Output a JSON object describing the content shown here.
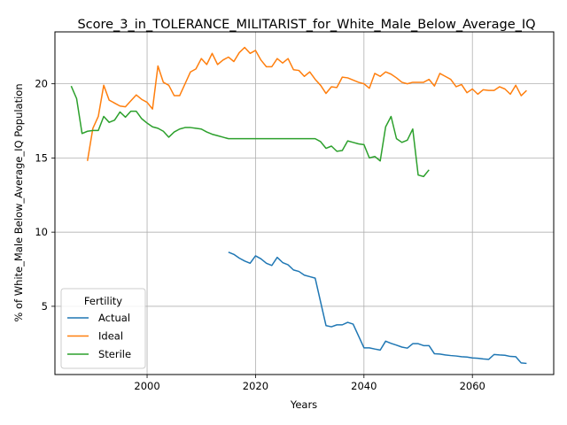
{
  "chart_data": {
    "type": "line",
    "title": "Score_3_in_TOLERANCE_MILITARIST_for_White_Male_Below_Average_IQ",
    "xlabel": "Years",
    "ylabel": "% of White_Male Below_Average_IQ Population",
    "xlim": [
      1983,
      2075
    ],
    "ylim": [
      0.4,
      23.5
    ],
    "xticks": [
      2000,
      2020,
      2040,
      2060
    ],
    "yticks": [
      5,
      10,
      15,
      20
    ],
    "grid": true,
    "legend": {
      "title": "Fertility",
      "placement": "lower-left"
    },
    "series": [
      {
        "name": "Actual",
        "color": "#1f77b4",
        "x": [
          2015,
          2016,
          2017,
          2018,
          2019,
          2020,
          2021,
          2022,
          2023,
          2024,
          2025,
          2026,
          2027,
          2028,
          2029,
          2030,
          2031,
          2032,
          2033,
          2034,
          2035,
          2036,
          2037,
          2038,
          2039,
          2040,
          2041,
          2042,
          2043,
          2044,
          2045,
          2046,
          2047,
          2048,
          2049,
          2050,
          2051,
          2052,
          2053,
          2054,
          2055,
          2056,
          2057,
          2058,
          2059,
          2060,
          2061,
          2062,
          2063,
          2064,
          2065,
          2066,
          2067,
          2068,
          2069,
          2070
        ],
        "y": [
          8.65,
          8.5,
          8.25,
          8.05,
          7.9,
          8.4,
          8.2,
          7.9,
          7.75,
          8.3,
          7.95,
          7.8,
          7.45,
          7.35,
          7.1,
          7.0,
          6.9,
          5.3,
          3.7,
          3.62,
          3.75,
          3.75,
          3.92,
          3.8,
          3.0,
          2.2,
          2.2,
          2.12,
          2.05,
          2.65,
          2.5,
          2.38,
          2.25,
          2.18,
          2.48,
          2.48,
          2.35,
          2.35,
          1.8,
          1.78,
          1.72,
          1.68,
          1.65,
          1.6,
          1.58,
          1.52,
          1.5,
          1.45,
          1.42,
          1.75,
          1.72,
          1.7,
          1.62,
          1.6,
          1.18,
          1.15
        ]
      },
      {
        "name": "Ideal",
        "color": "#ff7f0e",
        "x": [
          1989,
          1990,
          1991,
          1992,
          1993,
          1994,
          1995,
          1996,
          1997,
          1998,
          1999,
          2000,
          2001,
          2002,
          2003,
          2004,
          2005,
          2006,
          2007,
          2008,
          2009,
          2010,
          2011,
          2012,
          2013,
          2014,
          2015,
          2016,
          2017,
          2018,
          2019,
          2020,
          2021,
          2022,
          2023,
          2024,
          2025,
          2026,
          2027,
          2028,
          2029,
          2030,
          2031,
          2032,
          2033,
          2034,
          2035,
          2036,
          2037,
          2038,
          2039,
          2040,
          2041,
          2042,
          2043,
          2044,
          2045,
          2046,
          2047,
          2048,
          2049,
          2050,
          2051,
          2052,
          2053,
          2054,
          2055,
          2056,
          2057,
          2058,
          2059,
          2060,
          2061,
          2062,
          2063,
          2064,
          2065,
          2066,
          2067,
          2068,
          2069,
          2070
        ],
        "y": [
          14.8,
          17.0,
          17.8,
          19.9,
          18.9,
          18.7,
          18.5,
          18.45,
          18.85,
          19.25,
          18.95,
          18.75,
          18.3,
          21.2,
          20.1,
          19.9,
          19.2,
          19.2,
          20.0,
          20.8,
          21.0,
          21.7,
          21.3,
          22.05,
          21.3,
          21.6,
          21.8,
          21.5,
          22.1,
          22.45,
          22.05,
          22.25,
          21.6,
          21.15,
          21.15,
          21.7,
          21.4,
          21.7,
          20.95,
          20.9,
          20.5,
          20.8,
          20.3,
          19.9,
          19.35,
          19.8,
          19.75,
          20.45,
          20.4,
          20.25,
          20.1,
          20.0,
          19.7,
          20.7,
          20.5,
          20.8,
          20.65,
          20.4,
          20.1,
          20.0,
          20.1,
          20.1,
          20.1,
          20.3,
          19.85,
          20.7,
          20.5,
          20.3,
          19.8,
          19.95,
          19.4,
          19.65,
          19.3,
          19.6,
          19.55,
          19.55,
          19.8,
          19.65,
          19.3,
          19.9,
          19.2,
          19.55
        ]
      },
      {
        "name": "Sterile",
        "color": "#2ca02c",
        "x": [
          1986,
          1987,
          1988,
          1989,
          1990,
          1991,
          1992,
          1993,
          1994,
          1995,
          1996,
          1997,
          1998,
          1999,
          2000,
          2001,
          2002,
          2003,
          2004,
          2005,
          2006,
          2007,
          2008,
          2009,
          2010,
          2011,
          2012,
          2013,
          2014,
          2015,
          2016,
          2017,
          2018,
          2019,
          2020,
          2021,
          2022,
          2023,
          2024,
          2025,
          2026,
          2027,
          2028,
          2029,
          2030,
          2031,
          2032,
          2033,
          2034,
          2035,
          2036,
          2037,
          2038,
          2039,
          2040,
          2041,
          2042,
          2043,
          2044,
          2045,
          2046,
          2047,
          2048,
          2049,
          2050,
          2051,
          2052
        ],
        "y": [
          19.85,
          19.0,
          16.65,
          16.8,
          16.85,
          16.85,
          17.8,
          17.4,
          17.55,
          18.1,
          17.75,
          18.15,
          18.15,
          17.65,
          17.35,
          17.1,
          17.0,
          16.8,
          16.4,
          16.75,
          16.95,
          17.05,
          17.05,
          17.0,
          16.95,
          16.75,
          16.6,
          16.5,
          16.4,
          16.3,
          16.3,
          16.3,
          16.3,
          16.3,
          16.3,
          16.3,
          16.3,
          16.3,
          16.3,
          16.3,
          16.3,
          16.3,
          16.3,
          16.3,
          16.3,
          16.3,
          16.1,
          15.65,
          15.8,
          15.45,
          15.5,
          16.15,
          16.05,
          15.95,
          15.9,
          15.0,
          15.1,
          14.8,
          17.1,
          17.8,
          16.3,
          16.05,
          16.2,
          16.95,
          13.85,
          13.75,
          14.2
        ]
      }
    ]
  }
}
